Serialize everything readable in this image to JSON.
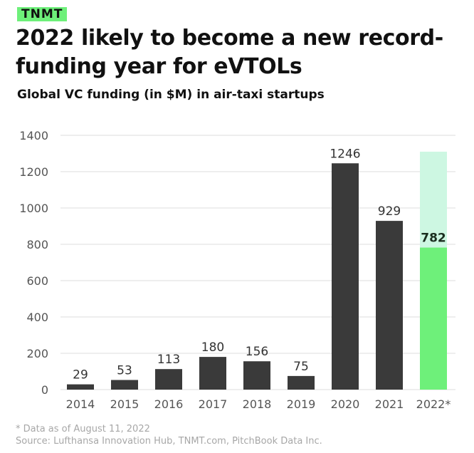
{
  "brand": "TNMT",
  "title": "2022 likely to become a new record-funding year for eVTOLs",
  "subtitle": "Global VC funding (in $M) in air-taxi startups",
  "footnote": "* Data as of August 11, 2022",
  "source": "Source: Lufthansa Innovation Hub, TNMT.com, PitchBook Data Inc.",
  "colors": {
    "bar": "#3a3a3a",
    "highlight": "#6ef07a",
    "projection": "#cdf7e2",
    "grid": "#dddddd",
    "tick": "#555555"
  },
  "chart_data": {
    "type": "bar",
    "title": "Global VC funding (in $M) in air-taxi startups",
    "xlabel": "",
    "ylabel": "",
    "ylim": [
      0,
      1400
    ],
    "yticks": [
      0,
      200,
      400,
      600,
      800,
      1000,
      1200,
      1400
    ],
    "grid": true,
    "categories": [
      "2014",
      "2015",
      "2016",
      "2017",
      "2018",
      "2019",
      "2020",
      "2021",
      "2022*"
    ],
    "values": [
      29,
      53,
      113,
      180,
      156,
      75,
      1246,
      929,
      782
    ],
    "projected": [
      null,
      null,
      null,
      null,
      null,
      null,
      null,
      null,
      1310
    ],
    "labels": [
      "29",
      "53",
      "113",
      "180",
      "156",
      "75",
      "1246",
      "929",
      "782"
    ]
  }
}
